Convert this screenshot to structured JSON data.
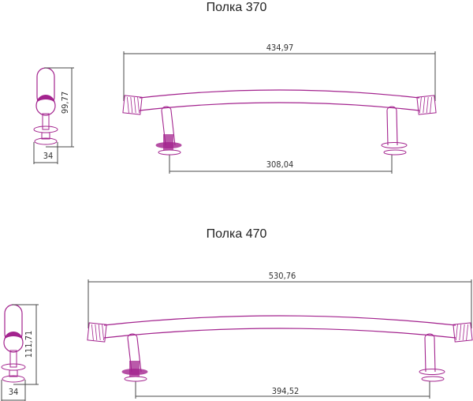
{
  "colors": {
    "part": "#a3238e",
    "dimension": "#4a4a4a"
  },
  "shelves": [
    {
      "title": "Полка 370",
      "length": "434,97",
      "mount_spacing": "308,04",
      "height": "99,77",
      "depth": "34"
    },
    {
      "title": "Полка 470",
      "length": "530,76",
      "mount_spacing": "394,52",
      "height": "111,71",
      "depth": "34"
    }
  ]
}
